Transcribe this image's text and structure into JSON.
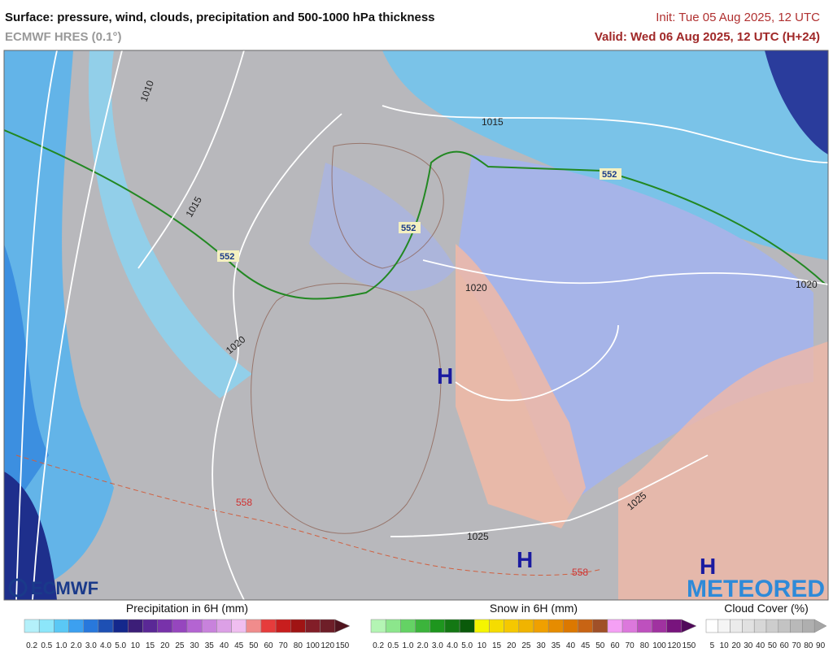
{
  "header": {
    "title": "Surface: pressure, wind, clouds, precipitation and 500-1000 hPa thickness",
    "model": "ECMWF HRES (0.1°)",
    "init": "Init: Tue 05 Aug 2025, 12 UTC",
    "valid": "Valid: Wed 06 Aug 2025, 12 UTC (H+24)"
  },
  "map": {
    "labels": [
      "1010",
      "1015",
      "1015",
      "1020",
      "1020",
      "1020",
      "1025",
      "1025",
      "552",
      "552",
      "552",
      "558",
      "558",
      "H",
      "H",
      "H"
    ]
  },
  "logos": [
    "ECMWF",
    "METEORED"
  ],
  "legends": [
    {
      "title": "Precipitation in 6H (mm)",
      "ticks": [
        "0.2",
        "0.5",
        "1.0",
        "2.0",
        "3.0",
        "4.0",
        "5.0",
        "10",
        "15",
        "20",
        "25",
        "30",
        "35",
        "40",
        "45",
        "50",
        "60",
        "70",
        "80",
        "100",
        "120",
        "150"
      ],
      "colors": [
        "#b4f0fa",
        "#8ce6fa",
        "#5ac8f5",
        "#3ca0f0",
        "#2878dc",
        "#1e50b4",
        "#14288c",
        "#3c1e78",
        "#5a2896",
        "#7832aa",
        "#9646be",
        "#b464d2",
        "#c882dc",
        "#dca0e6",
        "#f0bef0",
        "#f08c8c",
        "#e63c3c",
        "#c81e1e",
        "#a01414",
        "#821e28",
        "#6e1e28",
        "#50141e"
      ]
    },
    {
      "title": "Snow in 6H (mm)",
      "ticks": [
        "0.2",
        "0.5",
        "1.0",
        "2.0",
        "3.0",
        "4.0",
        "5.0",
        "10",
        "15",
        "20",
        "25",
        "30",
        "35",
        "40",
        "45",
        "50",
        "60",
        "70",
        "80",
        "100",
        "120",
        "150"
      ],
      "colors": [
        "#b4f5b4",
        "#8ce68c",
        "#64d264",
        "#3cb43c",
        "#1e961e",
        "#147814",
        "#0a5a0a",
        "#f5f500",
        "#f5dc00",
        "#f5c800",
        "#f0b400",
        "#f0a000",
        "#e68c00",
        "#dc7800",
        "#c86414",
        "#a05028",
        "#f5a0f5",
        "#dc78dc",
        "#be50be",
        "#a032a0",
        "#78147d",
        "#500a5a"
      ]
    },
    {
      "title": "Cloud Cover (%)",
      "ticks": [
        "5",
        "10",
        "20",
        "30",
        "40",
        "50",
        "60",
        "70",
        "80",
        "90"
      ],
      "colors": [
        "#ffffff",
        "#f5f5f5",
        "#ebebeb",
        "#e1e1e1",
        "#d7d7d7",
        "#cdcdcd",
        "#c3c3c3",
        "#b9b9b9",
        "#afafaf",
        "#a5a5a5"
      ]
    }
  ]
}
